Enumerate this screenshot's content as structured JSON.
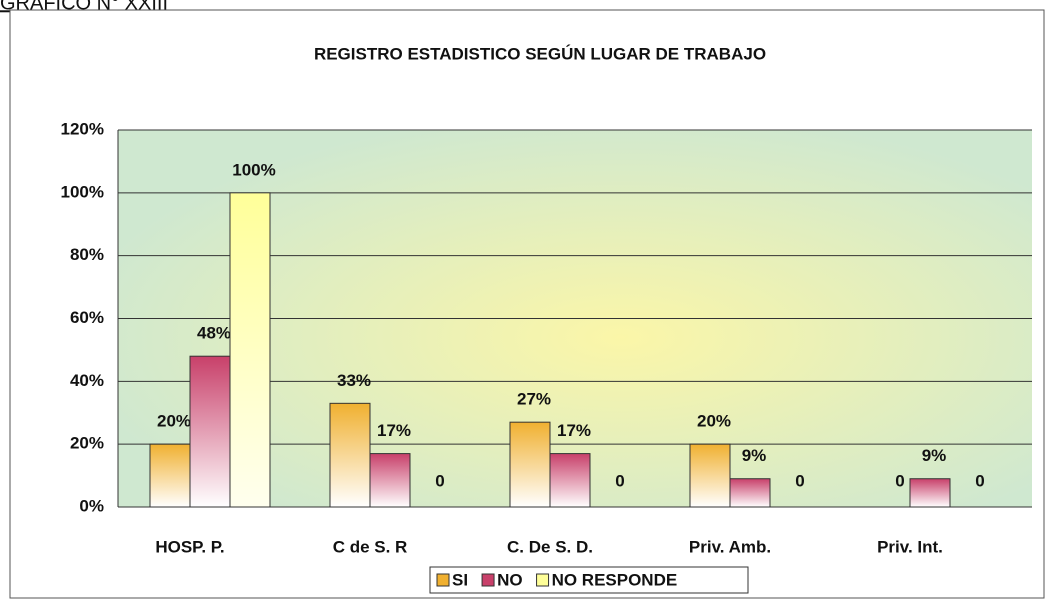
{
  "caption": "GRAFICO N° XXIII",
  "chart_data": {
    "type": "bar",
    "title": "REGISTRO ESTADISTICO SEGÚN LUGAR DE TRABAJO",
    "categories": [
      "HOSP. P.",
      "C de S. R",
      "C. De S. D.",
      "Priv. Amb.",
      "Priv. Int."
    ],
    "series": [
      {
        "name": "SI",
        "color": "#f0b030",
        "values": [
          20,
          33,
          27,
          20,
          0
        ],
        "value_labels": [
          "20%",
          "33%",
          "27%",
          "20%",
          "0"
        ]
      },
      {
        "name": "NO",
        "color": "#c8406a",
        "values": [
          48,
          17,
          17,
          9,
          9
        ],
        "value_labels": [
          "48%",
          "17%",
          "17%",
          "9%",
          "9%"
        ]
      },
      {
        "name": "NO RESPONDE",
        "color": "#ffff99",
        "values": [
          100,
          0,
          0,
          0,
          0
        ],
        "value_labels": [
          "100%",
          "0",
          "0",
          "0",
          "0"
        ]
      }
    ],
    "ylim": [
      0,
      120
    ],
    "yticks": [
      {
        "value": 0,
        "label": "0%"
      },
      {
        "value": 20,
        "label": "20%"
      },
      {
        "value": 40,
        "label": "40%"
      },
      {
        "value": 60,
        "label": "60%"
      },
      {
        "value": 80,
        "label": "80%"
      },
      {
        "value": 100,
        "label": "100%"
      },
      {
        "value": 120,
        "label": "120%"
      }
    ],
    "grid": true,
    "legend": "bottom"
  }
}
